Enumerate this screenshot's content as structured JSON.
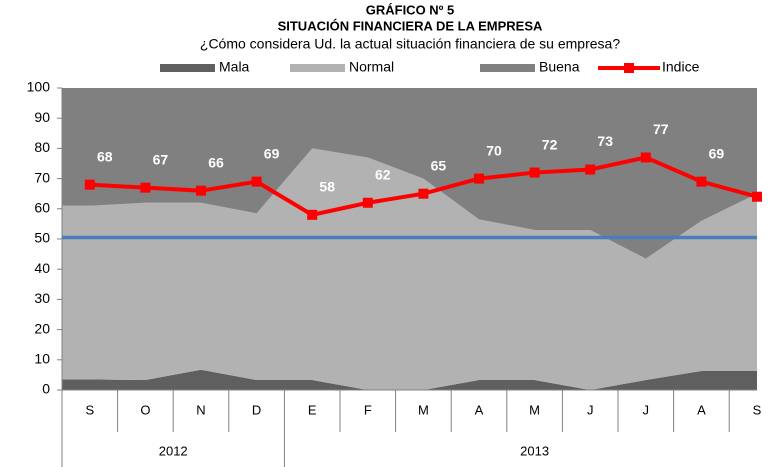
{
  "chart_data": {
    "type": "area",
    "title": "GRÁFICO Nº 5",
    "subtitle": "SITUACIÓN FINANCIERA DE LA EMPRESA",
    "question": "¿Cómo considera Ud. la actual situación financiera de su empresa?",
    "categories": [
      "S",
      "O",
      "N",
      "D",
      "E",
      "F",
      "M",
      "A",
      "M",
      "J",
      "J",
      "A",
      "S"
    ],
    "years": [
      "2012",
      null,
      null,
      null,
      "2013",
      null,
      null,
      null,
      null,
      null,
      null,
      null,
      null
    ],
    "stacked": true,
    "series": [
      {
        "name": "Mala",
        "color": "#5f5f5f",
        "values": [
          3.5,
          3.3,
          6.7,
          3.3,
          3.3,
          0,
          0,
          3.3,
          3.3,
          0,
          3.3,
          6.3,
          6.3
        ]
      },
      {
        "name": "Normal",
        "color": "#b2b2b2",
        "values": [
          57.5,
          58.7,
          55.3,
          55.2,
          76.7,
          77,
          70,
          53.2,
          49.7,
          53,
          40.2,
          49.7,
          58.7
        ]
      },
      {
        "name": "Buena",
        "color": "#808080",
        "values": [
          39,
          38,
          38,
          41.5,
          20,
          23,
          30,
          43.5,
          47,
          47,
          56.5,
          44,
          35
        ]
      },
      {
        "name": "Indice",
        "type": "line",
        "color": "#ff0000",
        "values": [
          68,
          67,
          66,
          69,
          58,
          62,
          65,
          70,
          72,
          73,
          77,
          69,
          64
        ]
      }
    ],
    "reference_line": {
      "value": 50.5,
      "color": "#4a7ebb"
    },
    "ylim": [
      0,
      100
    ],
    "yticks": [
      0,
      10,
      20,
      30,
      40,
      50,
      60,
      70,
      80,
      90,
      100
    ],
    "legend": "top"
  }
}
